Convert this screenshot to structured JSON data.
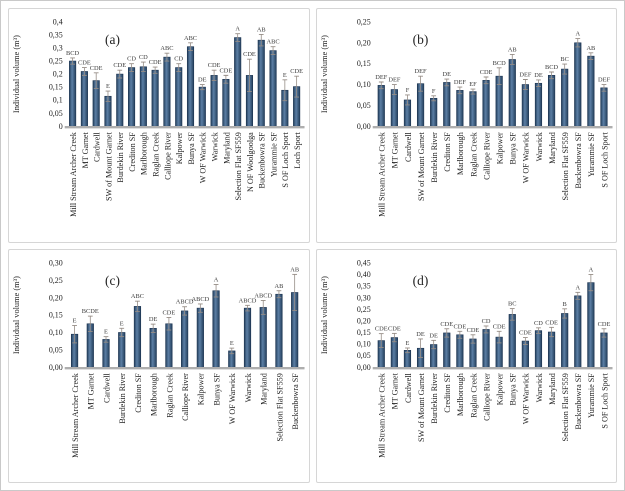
{
  "figure": {
    "background": "#ffffff",
    "outer_border_color": "#c9c9c9",
    "panel_border_color": "#d6d6d6",
    "bar_edge_color": "#24405d",
    "bar_mid_color": "#5c7fa5",
    "bar_stroke": "#1c3350",
    "error_bar_color": "#968d86",
    "axis_line_color": "#aeaeae",
    "text_color": "#222222",
    "letter_color": "#3a3a3a"
  },
  "chart_data": [
    {
      "type": "bar",
      "panel_label": "(a)",
      "ylabel": "Individual volume (m³)",
      "ylim": [
        0,
        0.4
      ],
      "grid": false,
      "ytick_labels": [
        "0,4",
        "0,35",
        "0,3",
        "0,25",
        "0,2",
        "0,15",
        "0,1",
        "0,05",
        "0"
      ],
      "categories": [
        "Mill Stream Archer Creek",
        "MT Garnet",
        "Cardwell",
        "SW of Mount Garnet",
        "Burdekin River",
        "Crediton SF",
        "Marlborough",
        "Raglan Creek",
        "Calliope River",
        "Kalpower",
        "Bunya SF",
        "W OF Warwick",
        "Warwick",
        "Maryland",
        "Selection Flat SF559",
        "N OF Woolgoolga",
        "Buckenbowra SF",
        "Yurammie SF",
        "S OF Loch Sport",
        "Loch Sport"
      ],
      "values": [
        0.25,
        0.21,
        0.175,
        0.115,
        0.2,
        0.225,
        0.228,
        0.215,
        0.265,
        0.225,
        0.305,
        0.15,
        0.195,
        0.18,
        0.34,
        0.195,
        0.33,
        0.29,
        0.138,
        0.152
      ],
      "errors": [
        0.012,
        0.015,
        0.03,
        0.02,
        0.015,
        0.015,
        0.018,
        0.012,
        0.015,
        0.015,
        0.015,
        0.01,
        0.02,
        0.015,
        0.015,
        0.062,
        0.022,
        0.015,
        0.04,
        0.04
      ],
      "letters": [
        "BCD",
        "CDE",
        "CDE",
        "E",
        "CDE",
        "CD",
        "CD",
        "CDE",
        "ABC",
        "CD",
        "ABC",
        "DE",
        "CDE",
        "CDE",
        "A",
        "CDE",
        "AB",
        "ABC",
        "E",
        "CDE"
      ]
    },
    {
      "type": "bar",
      "panel_label": "(b)",
      "ylabel": "Individual volume (m³)",
      "ylim": [
        0,
        0.25
      ],
      "grid": false,
      "ytick_labels": [
        "0,25",
        "0,20",
        "0,15",
        "0,10",
        "0,05",
        "0,00"
      ],
      "categories": [
        "Mill Stream Archer Creek",
        "MT Garnet",
        "Cardwell",
        "SW of Mount Garnet",
        "Burdekin River",
        "Crediton SF",
        "Marlborough",
        "Raglan Creek",
        "Calliope River",
        "Kalpower",
        "Bunya SF",
        "W OF Warwick",
        "Warwick",
        "Maryland",
        "Selection Flat SF559",
        "Buckenbowra SF",
        "Yurammie SF",
        "S OF Loch Sport"
      ],
      "values": [
        0.098,
        0.088,
        0.063,
        0.102,
        0.067,
        0.105,
        0.086,
        0.083,
        0.11,
        0.12,
        0.16,
        0.1,
        0.103,
        0.122,
        0.137,
        0.2,
        0.168,
        0.092
      ],
      "errors": [
        0.008,
        0.012,
        0.012,
        0.018,
        0.006,
        0.008,
        0.008,
        0.006,
        0.008,
        0.02,
        0.012,
        0.012,
        0.008,
        0.008,
        0.012,
        0.01,
        0.008,
        0.008
      ],
      "letters": [
        "DEF",
        "DEF",
        "F",
        "DEF",
        "F",
        "DE",
        "DEF",
        "EF",
        "CDE",
        "BCD",
        "AB",
        "DEF",
        "DE",
        "BCD",
        "BC",
        "A",
        "AB",
        "DEF"
      ]
    },
    {
      "type": "bar",
      "panel_label": "(c)",
      "ylabel": "Individual volume (m³)",
      "ylim": [
        0,
        0.3
      ],
      "grid": false,
      "ytick_labels": [
        "0,30",
        "0,25",
        "0,20",
        "0,15",
        "0,10",
        "0,05",
        "0,00"
      ],
      "categories": [
        "Mill Stream Archer Creek",
        "MT Garnet",
        "Cardwell",
        "Burdekin River",
        "Crediton SF",
        "Marlborough",
        "Raglan Creek",
        "Calliope River",
        "Kalpower",
        "Bunya SF",
        "W OF Warwick",
        "Warwick",
        "Maryland",
        "Selection Flat SF559",
        "Buckenbowra SF"
      ],
      "values": [
        0.095,
        0.125,
        0.08,
        0.1,
        0.175,
        0.112,
        0.125,
        0.162,
        0.17,
        0.22,
        0.047,
        0.17,
        0.172,
        0.21,
        0.215
      ],
      "errors": [
        0.025,
        0.022,
        0.008,
        0.012,
        0.015,
        0.012,
        0.018,
        0.012,
        0.012,
        0.018,
        0.008,
        0.008,
        0.02,
        0.01,
        0.052
      ],
      "letters": [
        "E",
        "BCDE",
        "E",
        "E",
        "ABC",
        "DE",
        "CDE",
        "ABCD",
        "ABCD",
        "A",
        "E",
        "ABCD",
        "ABCD",
        "AB",
        "AB"
      ]
    },
    {
      "type": "bar",
      "panel_label": "(d)",
      "ylabel": "Individual volume (m³)",
      "ylim": [
        0,
        0.45
      ],
      "grid": false,
      "ytick_labels": [
        "0,45",
        "0,40",
        "0,35",
        "0,30",
        "0,25",
        "0,20",
        "0,15",
        "0,10",
        "0,05",
        "0,00"
      ],
      "categories": [
        "Mill Stream Archer Creek",
        "MT Garnet",
        "Cardwell",
        "SW of Mount Garnet",
        "Burdekin River",
        "Crediton SF",
        "Marlborough",
        "Raglan Creek",
        "Calliope River",
        "Kalpower",
        "Bunya SF",
        "W OF Warwick",
        "Warwick",
        "Maryland",
        "Selection Flat SF559",
        "Buckenbowra SF",
        "Yurammie SF",
        "S OF Loch Sport"
      ],
      "values": [
        0.115,
        0.128,
        0.073,
        0.082,
        0.098,
        0.148,
        0.14,
        0.122,
        0.163,
        0.13,
        0.228,
        0.113,
        0.158,
        0.152,
        0.232,
        0.308,
        0.365,
        0.148
      ],
      "errors": [
        0.03,
        0.018,
        0.01,
        0.04,
        0.018,
        0.018,
        0.015,
        0.018,
        0.015,
        0.025,
        0.025,
        0.015,
        0.012,
        0.02,
        0.02,
        0.015,
        0.035,
        0.018
      ],
      "letters": [
        "CDE",
        "CDE",
        "E",
        "DE",
        "DE",
        "CDE",
        "CDE",
        "CDE",
        "CD",
        "CDE",
        "BC",
        "CDE",
        "CD",
        "CDE",
        "B",
        "A",
        "A",
        "CDE"
      ]
    }
  ]
}
